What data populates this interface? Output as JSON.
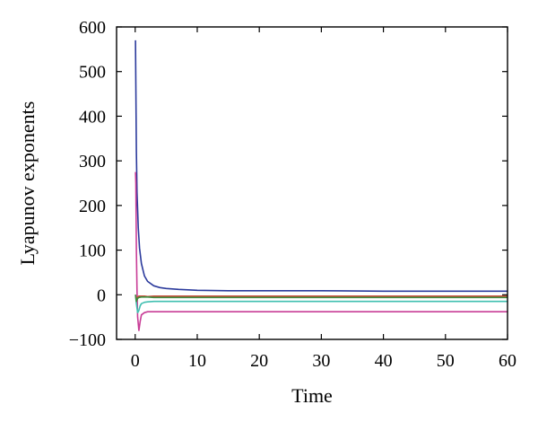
{
  "chart_data": {
    "type": "line",
    "xlabel": "Time",
    "ylabel": "Lyapunov exponents",
    "xlim": [
      -3,
      60
    ],
    "ylim": [
      -100,
      600
    ],
    "xticks": [
      0,
      10,
      20,
      30,
      40,
      50,
      60
    ],
    "yticks": [
      -100,
      0,
      100,
      200,
      300,
      400,
      500,
      600
    ],
    "xtick_labels": [
      "0",
      "10",
      "20",
      "30",
      "40",
      "50",
      "60"
    ],
    "ytick_labels": [
      "−100",
      "0",
      "100",
      "200",
      "300",
      "400",
      "500",
      "600"
    ],
    "grid": false,
    "series": [
      {
        "color": "#2b3a9c",
        "x": [
          0.05,
          0.1,
          0.2,
          0.3,
          0.5,
          0.7,
          1,
          1.5,
          2,
          3,
          4,
          5,
          7,
          10,
          15,
          20,
          30,
          40,
          50,
          60
        ],
        "y": [
          570,
          470,
          320,
          230,
          150,
          105,
          70,
          42,
          30,
          20,
          16,
          14,
          12,
          10,
          9,
          9,
          9,
          8,
          8,
          8
        ]
      },
      {
        "color": "#c83c96",
        "x": [
          0.05,
          0.1,
          0.2,
          0.3,
          0.4,
          0.6,
          0.8,
          1,
          1.5,
          2,
          3,
          5,
          10,
          20,
          30,
          40,
          50,
          60
        ],
        "y": [
          275,
          250,
          100,
          10,
          -50,
          -80,
          -60,
          -45,
          -40,
          -38,
          -38,
          -38,
          -38,
          -38,
          -38,
          -38,
          -38,
          -38
        ]
      },
      {
        "color": "#3fbfb0",
        "x": [
          0.05,
          0.2,
          0.4,
          0.6,
          0.8,
          1,
          1.5,
          2,
          3,
          5,
          10,
          20,
          30,
          40,
          50,
          60
        ],
        "y": [
          0,
          -20,
          -40,
          -35,
          -25,
          -20,
          -17,
          -16,
          -15,
          -15,
          -15,
          -15,
          -15,
          -15,
          -15,
          -15
        ]
      },
      {
        "color": "#c8503c",
        "x": [
          0.05,
          0.2,
          0.4,
          0.6,
          1,
          1.5,
          2,
          3,
          5,
          10,
          20,
          30,
          40,
          50,
          60
        ],
        "y": [
          0,
          -10,
          -5,
          -3,
          -3,
          -3,
          -4,
          -3,
          -3,
          -3,
          -3,
          -3,
          -3,
          -3,
          -3
        ]
      },
      {
        "color": "#3f8c3f",
        "x": [
          0.05,
          0.2,
          0.4,
          0.6,
          1,
          1.5,
          2,
          3,
          5,
          10,
          20,
          30,
          40,
          50,
          60
        ],
        "y": [
          0,
          -15,
          -8,
          -6,
          -5,
          -5,
          -5,
          -6,
          -6,
          -6,
          -6,
          -6,
          -6,
          -6,
          -6
        ]
      }
    ]
  }
}
